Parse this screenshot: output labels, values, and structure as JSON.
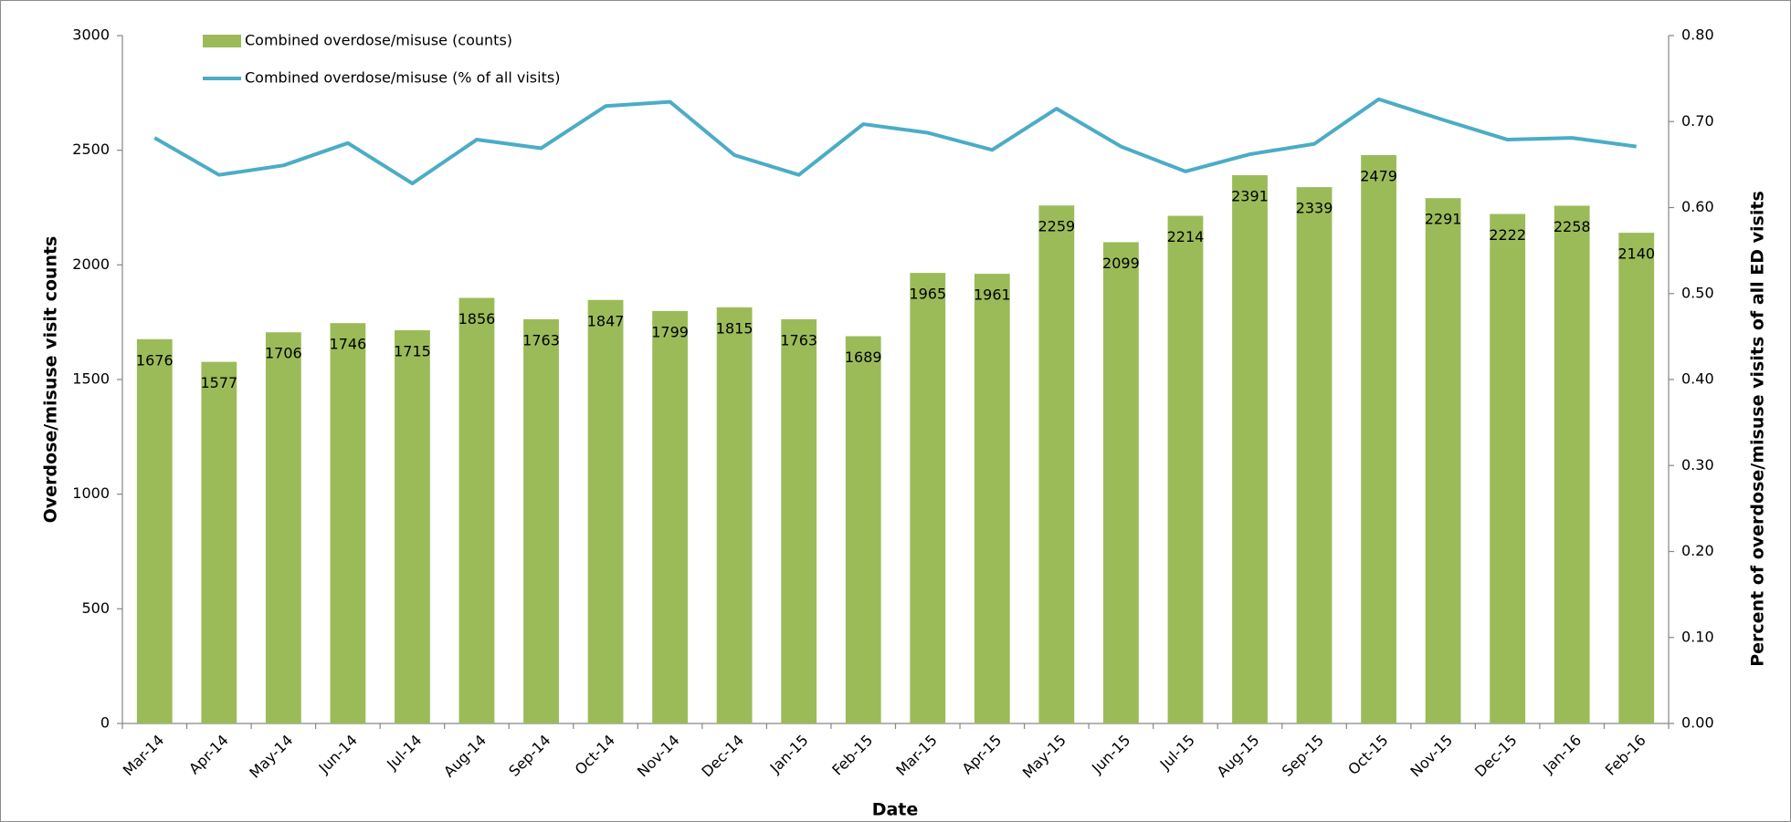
{
  "chart_data": {
    "type": "bar_line",
    "xlabel": "Date",
    "ylabel": "Overdose/misuse visit counts",
    "y2label": "Percent of overdose/misuse visits of all ED visits",
    "categories": [
      "Mar-14",
      "Apr-14",
      "May-14",
      "Jun-14",
      "Jul-14",
      "Aug-14",
      "Sep-14",
      "Oct-14",
      "Nov-14",
      "Dec-14",
      "Jan-15",
      "Feb-15",
      "Mar-15",
      "Apr-15",
      "May-15",
      "Jun-15",
      "Jul-15",
      "Aug-15",
      "Sep-15",
      "Oct-15",
      "Nov-15",
      "Dec-15",
      "Jan-16",
      "Feb-16"
    ],
    "series": [
      {
        "name": "Combined overdose/misuse (counts)",
        "type": "bar",
        "color": "#9bbb59",
        "values": [
          1676,
          1577,
          1706,
          1746,
          1715,
          1856,
          1763,
          1847,
          1799,
          1815,
          1763,
          1689,
          1965,
          1961,
          2259,
          2099,
          2214,
          2391,
          2339,
          2479,
          2291,
          2222,
          2258,
          2140
        ]
      },
      {
        "name": "Combined overdose/misuse (% of all visits)",
        "type": "line",
        "axis": "y2",
        "color": "#4bacc6",
        "values": [
          0.681,
          0.638,
          0.649,
          0.675,
          0.628,
          0.679,
          0.669,
          0.718,
          0.723,
          0.661,
          0.638,
          0.697,
          0.687,
          0.667,
          0.715,
          0.671,
          0.642,
          0.662,
          0.674,
          0.726,
          0.702,
          0.679,
          0.681,
          0.671
        ]
      }
    ],
    "ylim": [
      0,
      3000
    ],
    "yticks": [
      0,
      500,
      1000,
      1500,
      2000,
      2500,
      3000
    ],
    "y2lim": [
      0,
      0.8
    ],
    "y2ticks": [
      {
        "value": 0,
        "label": "0.00"
      },
      {
        "value": 0.1,
        "label": "0.10"
      },
      {
        "value": 0.2,
        "label": "0.20"
      },
      {
        "value": 0.3,
        "label": "0.30"
      },
      {
        "value": 0.4,
        "label": "0.40"
      },
      {
        "value": 0.5,
        "label": "0.50"
      },
      {
        "value": 0.6,
        "label": "0.60"
      },
      {
        "value": 0.7,
        "label": "0.70"
      },
      {
        "value": 0.8,
        "label": "0.80"
      }
    ],
    "grid": false,
    "legend": "top-left"
  }
}
